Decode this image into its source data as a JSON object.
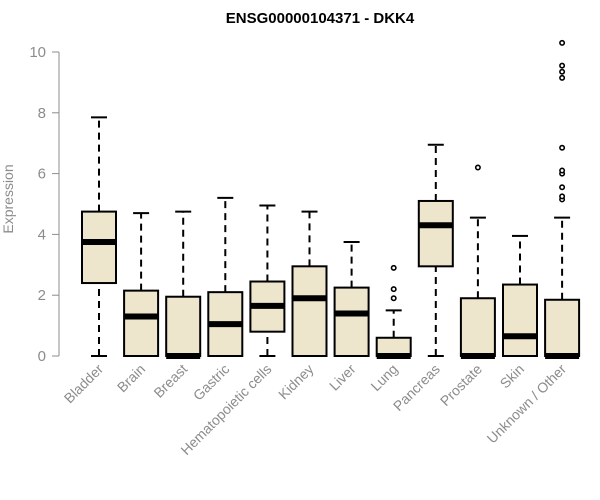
{
  "chart_data": {
    "type": "box",
    "title": "ENSG00000104371 - DKK4",
    "ylabel": "Expression",
    "xlabel": "",
    "ylim": [
      0,
      10.5
    ],
    "yticks": [
      0,
      2,
      4,
      6,
      8,
      10
    ],
    "grid": false,
    "legend": "none",
    "box_fill": "#ede6cc",
    "box_stroke": "#000000",
    "categories": [
      "Bladder",
      "Brain",
      "Breast",
      "Gastric",
      "Hematopoietic cells",
      "Kidney",
      "Liver",
      "Lung",
      "Pancreas",
      "Prostate",
      "Skin",
      "Unknown / Other"
    ],
    "boxes": [
      {
        "whisker_low": 0,
        "q1": 2.4,
        "median": 3.75,
        "q3": 4.75,
        "whisker_high": 7.85,
        "outliers": []
      },
      {
        "whisker_low": 0,
        "q1": 0,
        "median": 1.3,
        "q3": 2.15,
        "whisker_high": 4.7,
        "outliers": []
      },
      {
        "whisker_low": 0,
        "q1": 0,
        "median": 0,
        "q3": 1.95,
        "whisker_high": 4.75,
        "outliers": []
      },
      {
        "whisker_low": 0,
        "q1": 0,
        "median": 1.05,
        "q3": 2.1,
        "whisker_high": 5.2,
        "outliers": []
      },
      {
        "whisker_low": 0,
        "q1": 0.8,
        "median": 1.65,
        "q3": 2.45,
        "whisker_high": 4.95,
        "outliers": []
      },
      {
        "whisker_low": 0,
        "q1": 0,
        "median": 1.9,
        "q3": 2.95,
        "whisker_high": 4.75,
        "outliers": []
      },
      {
        "whisker_low": 0,
        "q1": 0,
        "median": 1.4,
        "q3": 2.25,
        "whisker_high": 3.75,
        "outliers": []
      },
      {
        "whisker_low": 0,
        "q1": 0,
        "median": 0,
        "q3": 0.6,
        "whisker_high": 1.5,
        "outliers": [
          1.9,
          2.2,
          2.9
        ]
      },
      {
        "whisker_low": 0,
        "q1": 2.95,
        "median": 4.3,
        "q3": 5.1,
        "whisker_high": 6.95,
        "outliers": []
      },
      {
        "whisker_low": 0,
        "q1": 0,
        "median": 0,
        "q3": 1.9,
        "whisker_high": 4.55,
        "outliers": [
          6.2
        ]
      },
      {
        "whisker_low": 0,
        "q1": 0,
        "median": 0.65,
        "q3": 2.35,
        "whisker_high": 3.95,
        "outliers": []
      },
      {
        "whisker_low": 0,
        "q1": 0,
        "median": 0,
        "q3": 1.85,
        "whisker_high": 4.55,
        "outliers": [
          5.15,
          5.25,
          5.55,
          6.0,
          6.1,
          6.85,
          9.15,
          9.35,
          9.55,
          10.3
        ]
      }
    ]
  }
}
